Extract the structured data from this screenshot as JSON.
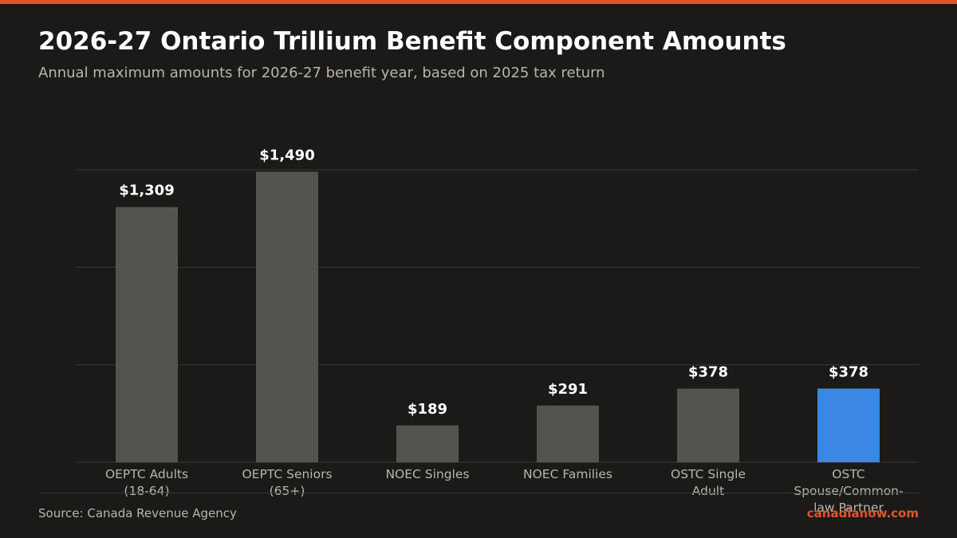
{
  "title": "2026-27 Ontario Trillium Benefit Component Amounts",
  "subtitle": "Annual maximum amounts for 2026-27 benefit year, based on 2025 tax return",
  "source": "Source: Canada Revenue Agency",
  "brand": "canadianow.com",
  "colors": {
    "accent": "#e0552b",
    "bar": "#55534d",
    "highlight": "#3a88e3",
    "background": "#1b1a18",
    "grid": "#3a3935",
    "value_label": "#ffffff",
    "tick_label": "#b9b5ab"
  },
  "chart_data": {
    "type": "bar",
    "title": "2026-27 Ontario Trillium Benefit Component Amounts",
    "xlabel": "",
    "ylabel": "",
    "categories": [
      [
        "OEPTC Adults",
        "(18-64)"
      ],
      [
        "OEPTC Seniors",
        "(65+)"
      ],
      [
        "NOEC Singles"
      ],
      [
        "NOEC Families"
      ],
      [
        "OSTC Single",
        "Adult"
      ],
      [
        "OSTC",
        "Spouse/Common-",
        "law Partner"
      ]
    ],
    "values": [
      1309,
      1490,
      189,
      291,
      378,
      378
    ],
    "value_labels": [
      "$1,309",
      "$1,490",
      "$189",
      "$291",
      "$378",
      "$378"
    ],
    "highlight_index": 5,
    "ylim": [
      0,
      1500
    ],
    "grid": true,
    "legend": "none"
  }
}
